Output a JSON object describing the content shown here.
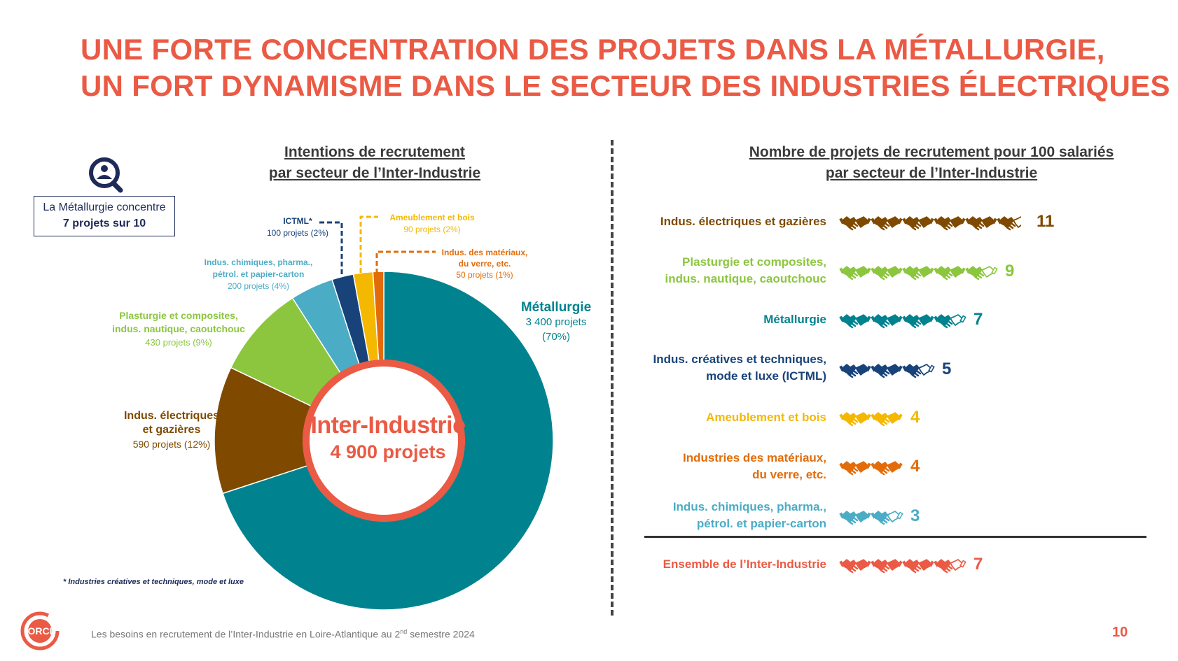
{
  "title": {
    "line1": "UNE FORTE CONCENTRATION DES PROJETS DANS LA MÉTALLURGIE,",
    "line2": "UN FORT DYNAMISME DANS LE SECTEUR DES INDUSTRIES ÉLECTRIQUES"
  },
  "left_title": {
    "line1": "Intentions de recrutement",
    "line2": "par secteur de l’Inter-Industrie"
  },
  "right_title": {
    "line1": "Nombre de projets de recrutement pour 100 salariés",
    "line2": "par secteur de l’Inter-Industrie"
  },
  "callout": {
    "line1": "La Métallurgie concentre",
    "line2": "7 projets sur 10"
  },
  "center": {
    "label": "Inter-Industrie",
    "value": "4 900 projets"
  },
  "footnote": "* Industries créatives et techniques, mode et luxe",
  "footer": {
    "text_before": "Les besoins en recrutement de l’Inter-Industrie en Loire-Atlantique au 2",
    "sup": "nd",
    "text_after": " semestre 2024"
  },
  "page_number": "10",
  "logo_text": "ORCI",
  "colors": {
    "accent": "#ea5a44",
    "metallurgie": "#00838f",
    "electriques": "#7f4a00",
    "plasturgie": "#8cc63f",
    "chimiques": "#4bacc6",
    "ictml": "#17437a",
    "ameublement": "#f5b800",
    "materiaux": "#e36c0a",
    "dark": "#1e2a5a"
  },
  "chart_data": [
    {
      "type": "pie",
      "title": "Intentions de recrutement par secteur de l’Inter-Industrie",
      "total_label": "4 900 projets",
      "slices": [
        {
          "name": "Métallurgie",
          "value": 3400,
          "value_label": "3 400 projets",
          "pct_label": "(70%)",
          "color": "#00838f"
        },
        {
          "name": "Indus. électriques et gazières",
          "name_lines": [
            "Indus. électriques",
            "et gazières"
          ],
          "value": 590,
          "value_label": "590 projets (12%)",
          "color": "#7f4a00"
        },
        {
          "name": "Plasturgie et composites, indus. nautique, caoutchouc",
          "name_lines": [
            "Plasturgie et composites,",
            "indus. nautique, caoutchouc"
          ],
          "value": 430,
          "value_label": "430 projets (9%)",
          "color": "#8cc63f"
        },
        {
          "name": "Indus. chimiques, pharma., pétrol. et papier-carton",
          "name_lines": [
            "Indus. chimiques, pharma.,",
            "pétrol. et papier-carton"
          ],
          "value": 200,
          "value_label": "200 projets (4%)",
          "color": "#4bacc6"
        },
        {
          "name": "ICTML*",
          "name_lines": [
            "ICTML*"
          ],
          "value": 100,
          "value_label": "100 projets (2%)",
          "color": "#17437a"
        },
        {
          "name": "Ameublement et bois",
          "name_lines": [
            "Ameublement et bois"
          ],
          "value": 90,
          "value_label": "90 projets (2%)",
          "color": "#f5b800"
        },
        {
          "name": "Indus. des matériaux, du verre, etc.",
          "name_lines": [
            "Indus. des matériaux,",
            "du verre, etc."
          ],
          "value": 50,
          "value_label": "50 projets (1%)",
          "color": "#e36c0a"
        }
      ]
    },
    {
      "type": "pictogram",
      "title": "Nombre de projets de recrutement pour 100 salariés par secteur de l’Inter-Industrie",
      "unit_per_icon": 2,
      "rows": [
        {
          "lines": [
            "Indus. électriques et gazières"
          ],
          "value": 11,
          "icons": 5.5,
          "color": "#7f4a00"
        },
        {
          "lines": [
            "Plasturgie et composites,",
            "indus. nautique, caoutchouc"
          ],
          "value": 9,
          "icons": 4.5,
          "color": "#8cc63f"
        },
        {
          "lines": [
            "Métallurgie"
          ],
          "value": 7,
          "icons": 3.5,
          "color": "#00838f"
        },
        {
          "lines": [
            "Indus. créatives et techniques,",
            "mode et luxe (ICTML)"
          ],
          "value": 5,
          "icons": 2.5,
          "color": "#17437a"
        },
        {
          "lines": [
            "Ameublement et bois"
          ],
          "value": 4,
          "icons": 2,
          "color": "#f5b800"
        },
        {
          "lines": [
            "Industries des matériaux,",
            "du verre, etc."
          ],
          "value": 4,
          "icons": 2,
          "color": "#e36c0a"
        },
        {
          "lines": [
            "Indus. chimiques, pharma.,",
            "pétrol. et papier-carton"
          ],
          "value": 3,
          "icons": 1.5,
          "color": "#4bacc6"
        }
      ],
      "total": {
        "lines": [
          "Ensemble de l’Inter-Industrie"
        ],
        "value": 7,
        "icons": 3.5,
        "color": "#ea5a44"
      }
    }
  ]
}
